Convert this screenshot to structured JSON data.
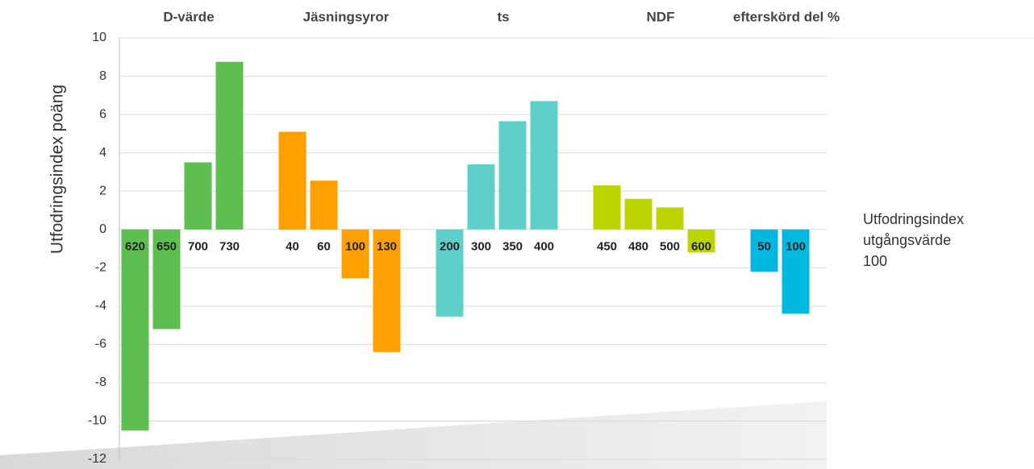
{
  "chart_data": {
    "type": "bar",
    "y_label": "Utfodringsindex poäng",
    "annotation": [
      "Utfodringsindex",
      "utgångsvärde",
      "100"
    ],
    "ylim": [
      -12,
      10
    ],
    "yticks": [
      -12,
      -10,
      -8,
      -6,
      -4,
      -2,
      0,
      2,
      4,
      6,
      8,
      10
    ],
    "grid": true,
    "groups": [
      {
        "name": "D-värde",
        "color": "#5dbf50",
        "categories": [
          "620",
          "650",
          "700",
          "730"
        ],
        "values": [
          -10.5,
          -5.2,
          3.5,
          8.75
        ]
      },
      {
        "name": "Jäsningsyror",
        "color": "#ffa000",
        "categories": [
          "40",
          "60",
          "100",
          "130"
        ],
        "values": [
          5.1,
          2.55,
          -2.55,
          -6.4
        ]
      },
      {
        "name": "ts",
        "color": "#5fcfca",
        "categories": [
          "200",
          "300",
          "350",
          "400"
        ],
        "values": [
          -4.55,
          3.4,
          5.65,
          6.7
        ]
      },
      {
        "name": "NDF",
        "color": "#bcd500",
        "categories": [
          "450",
          "480",
          "500",
          "600"
        ],
        "values": [
          2.3,
          1.6,
          1.15,
          -1.2
        ]
      },
      {
        "name": "efterskörd del %",
        "color": "#00b8e0",
        "categories": [
          "50",
          "100"
        ],
        "values": [
          -2.2,
          -4.4
        ]
      }
    ]
  }
}
